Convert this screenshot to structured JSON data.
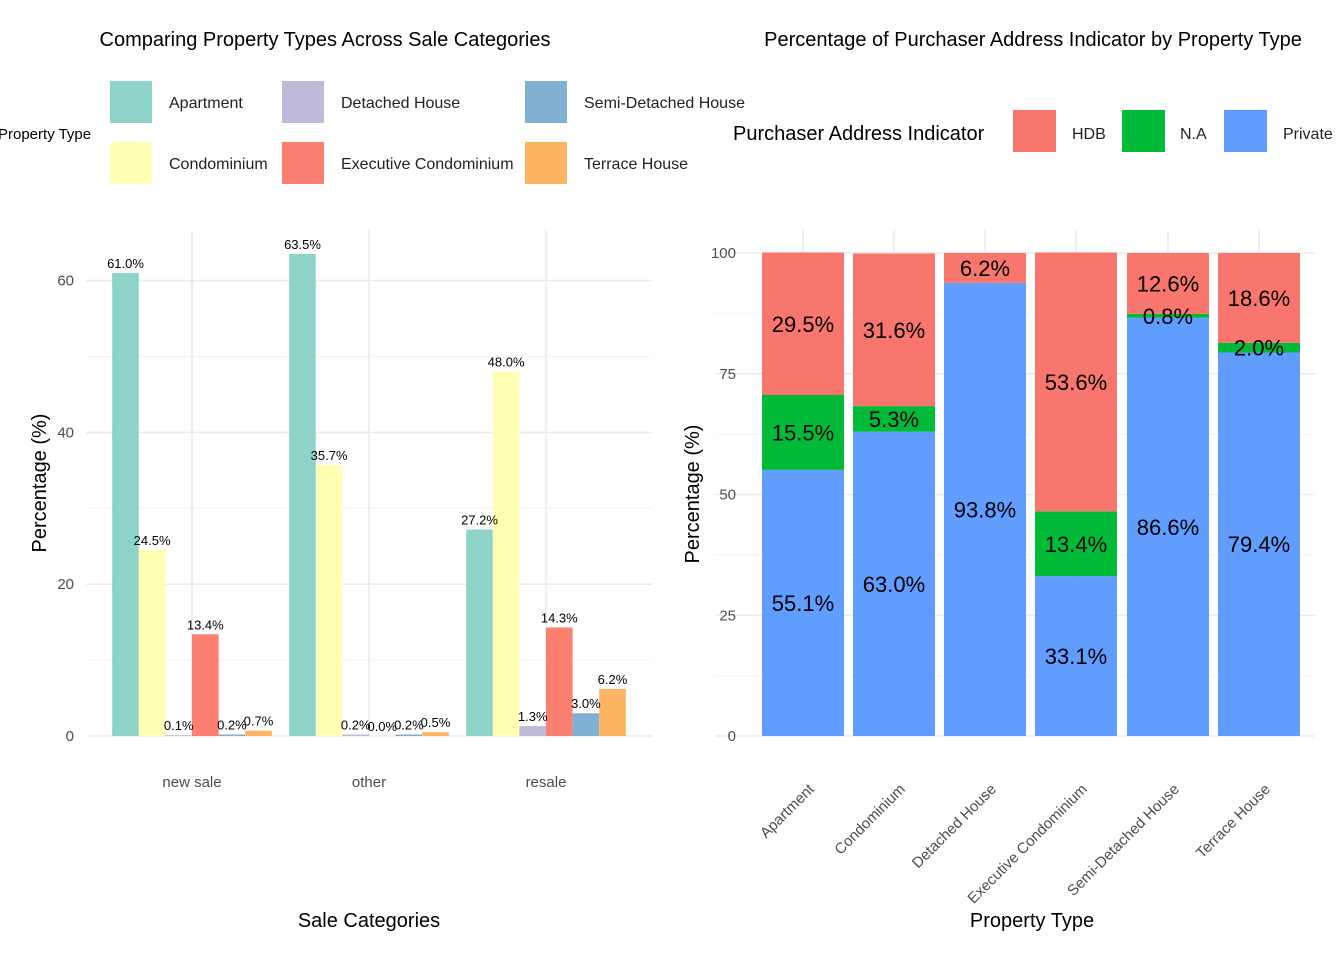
{
  "chart_data": [
    {
      "type": "bar",
      "title": "Comparing Property Types Across Sale Categories",
      "xlabel": "Sale Categories",
      "ylabel": "Percentage (%)",
      "ylim": [
        0,
        66
      ],
      "yticks": [
        0,
        20,
        40,
        60
      ],
      "grid": true,
      "legend": {
        "title": "Property Type",
        "position": "top",
        "entries": [
          {
            "name": "Apartment",
            "color": "#8DD3C7"
          },
          {
            "name": "Detached House",
            "color": "#BEBADA"
          },
          {
            "name": "Semi-Detached House",
            "color": "#80B1D3"
          },
          {
            "name": "Condominium",
            "color": "#FFFFB3"
          },
          {
            "name": "Executive Condominium",
            "color": "#FB8072"
          },
          {
            "name": "Terrace House",
            "color": "#FDB462"
          }
        ]
      },
      "categories": [
        "new sale",
        "other",
        "resale"
      ],
      "series": [
        {
          "name": "Apartment",
          "color": "#8DD3C7",
          "values": [
            61.0,
            63.5,
            27.2
          ],
          "labels": [
            "61.0%",
            "63.5%",
            "27.2%"
          ]
        },
        {
          "name": "Condominium",
          "color": "#FFFFB3",
          "values": [
            24.5,
            35.7,
            48.0
          ],
          "labels": [
            "24.5%",
            "35.7%",
            "48.0%"
          ]
        },
        {
          "name": "Detached House",
          "color": "#BEBADA",
          "values": [
            0.1,
            0.2,
            1.3
          ],
          "labels": [
            "0.1%",
            "0.2%",
            "1.3%"
          ]
        },
        {
          "name": "Executive Condominium",
          "color": "#FB8072",
          "values": [
            13.4,
            0.0,
            14.3
          ],
          "labels": [
            "13.4%",
            "0.0%",
            "14.3%"
          ]
        },
        {
          "name": "Semi-Detached House",
          "color": "#80B1D3",
          "values": [
            0.2,
            0.2,
            3.0
          ],
          "labels": [
            "0.2%",
            "0.2%",
            "3.0%"
          ]
        },
        {
          "name": "Terrace House",
          "color": "#FDB462",
          "values": [
            0.7,
            0.5,
            6.2
          ],
          "labels": [
            "0.7%",
            "0.5%",
            "6.2%"
          ]
        }
      ]
    },
    {
      "type": "bar",
      "stacked": true,
      "title": "Percentage of Purchaser Address Indicator by Property Type",
      "xlabel": "Property Type",
      "ylabel": "Percentage (%)",
      "ylim": [
        0,
        100
      ],
      "yticks": [
        0,
        25,
        50,
        75,
        100
      ],
      "grid": true,
      "legend": {
        "title": "Purchaser Address Indicator",
        "position": "top",
        "entries": [
          {
            "name": "HDB",
            "color": "#F8766D"
          },
          {
            "name": "N.A",
            "color": "#00BA38"
          },
          {
            "name": "Private",
            "color": "#619CFF"
          }
        ]
      },
      "categories": [
        "Apartment",
        "Condominium",
        "Detached House",
        "Executive Condominium",
        "Semi-Detached House",
        "Terrace House"
      ],
      "series": [
        {
          "name": "Private",
          "color": "#619CFF",
          "values": [
            55.1,
            63.0,
            93.8,
            33.1,
            86.6,
            79.4
          ],
          "labels": [
            "55.1%",
            "63.0%",
            "93.8%",
            "33.1%",
            "86.6%",
            "79.4%"
          ]
        },
        {
          "name": "N.A",
          "color": "#00BA38",
          "values": [
            15.5,
            5.3,
            0.0,
            13.4,
            0.8,
            2.0
          ],
          "labels": [
            "15.5%",
            "5.3%",
            "",
            "13.4%",
            "0.8%",
            "2.0%"
          ]
        },
        {
          "name": "HDB",
          "color": "#F8766D",
          "values": [
            29.5,
            31.6,
            6.2,
            53.6,
            12.6,
            18.6
          ],
          "labels": [
            "29.5%",
            "31.6%",
            "6.2%",
            "53.6%",
            "12.6%",
            "18.6%"
          ]
        }
      ]
    }
  ]
}
